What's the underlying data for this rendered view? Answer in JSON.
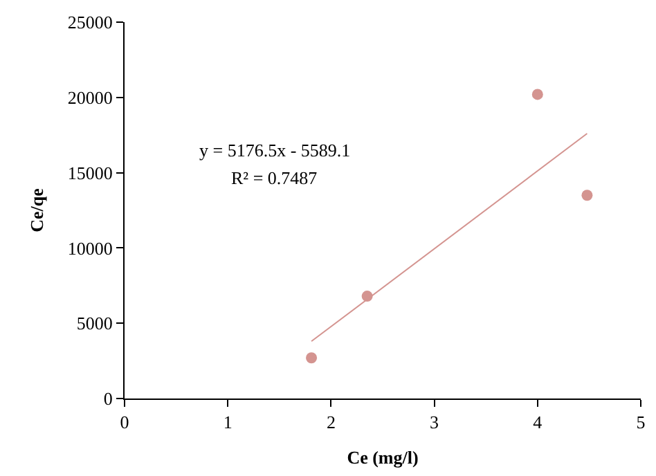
{
  "chart_data": {
    "type": "scatter",
    "xlabel": "Ce (mg/l)",
    "ylabel": "Ce/qe",
    "xlim": [
      0,
      5
    ],
    "xticks": [
      0,
      1,
      2,
      3,
      4,
      5
    ],
    "ylim": [
      0,
      25000
    ],
    "yticks": [
      0,
      5000,
      10000,
      15000,
      20000,
      25000
    ],
    "grid": false,
    "marker": "circle",
    "series": [
      {
        "color": "#d49490",
        "x": [
          1.81,
          2.35,
          4.0,
          4.48
        ],
        "values": [
          2700,
          6800,
          20200,
          13500
        ]
      },
      {
        "type": "line",
        "color": "#d49490",
        "x": [
          1.81,
          4.48
        ],
        "values": [
          3800,
          17600
        ],
        "marker": "none"
      }
    ],
    "annotations": [
      "y = 5176.5x - 5589.1",
      "R² = 0.7487"
    ]
  }
}
